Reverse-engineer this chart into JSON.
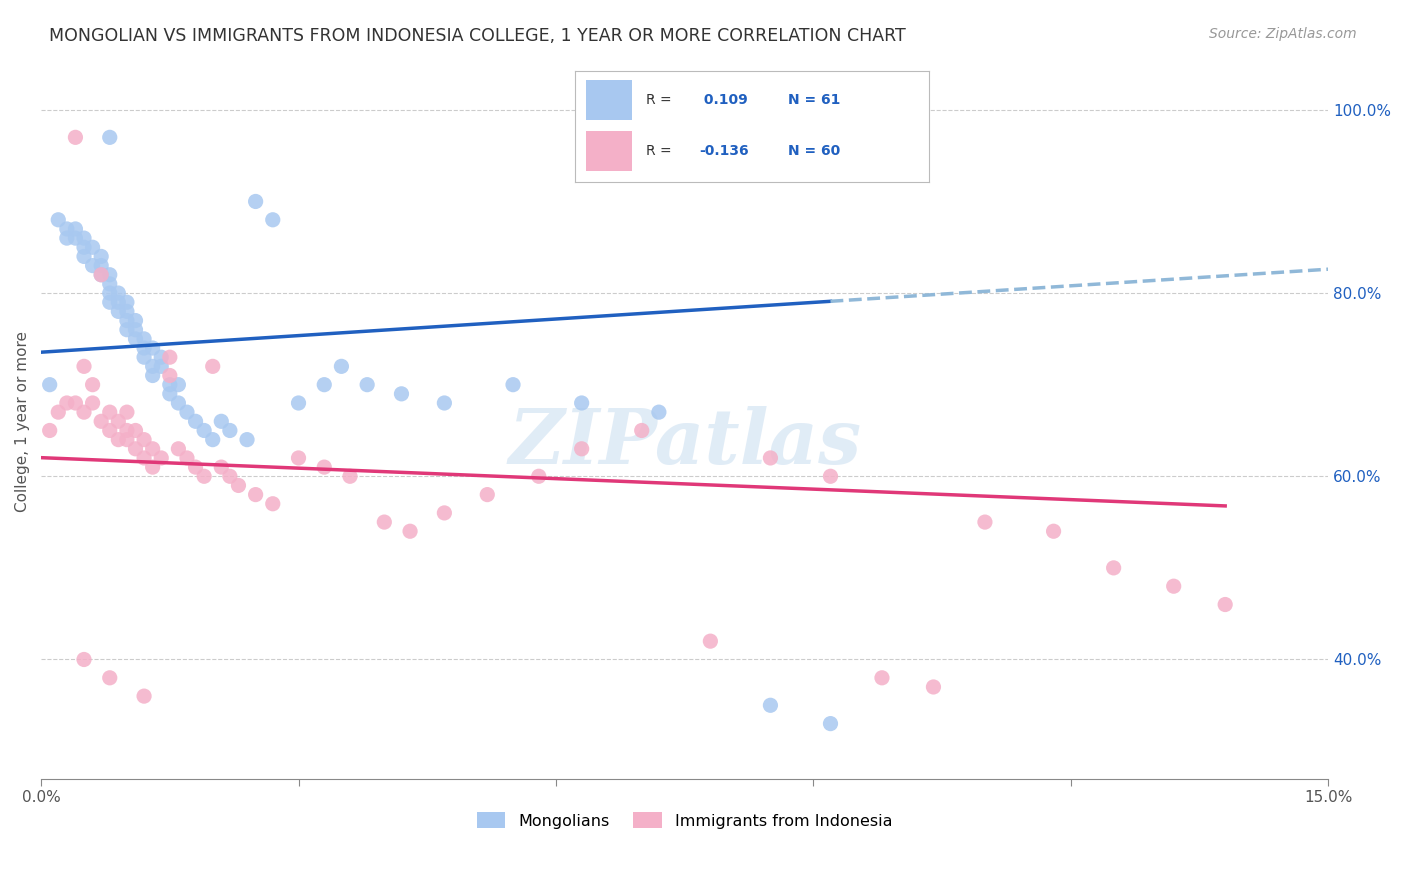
{
  "title": "MONGOLIAN VS IMMIGRANTS FROM INDONESIA COLLEGE, 1 YEAR OR MORE CORRELATION CHART",
  "source": "Source: ZipAtlas.com",
  "ylabel": "College, 1 year or more",
  "xlim": [
    0.0,
    0.15
  ],
  "ylim": [
    0.27,
    1.05
  ],
  "yticks_right": [
    1.0,
    0.8,
    0.6,
    0.4
  ],
  "yticklabels_right": [
    "100.0%",
    "80.0%",
    "60.0%",
    "40.0%"
  ],
  "mongolian_color": "#a8c8f0",
  "indonesia_color": "#f4b0c8",
  "mongolian_line_color": "#2060c0",
  "indonesia_line_color": "#e03878",
  "dashed_line_color": "#90b8d8",
  "R_mongolian": 0.109,
  "N_mongolian": 61,
  "R_indonesia": -0.136,
  "N_indonesia": 60,
  "watermark": "ZIPatlas",
  "mongolian_x": [
    0.001,
    0.002,
    0.003,
    0.003,
    0.004,
    0.004,
    0.005,
    0.005,
    0.005,
    0.006,
    0.006,
    0.007,
    0.007,
    0.007,
    0.008,
    0.008,
    0.008,
    0.008,
    0.009,
    0.009,
    0.009,
    0.01,
    0.01,
    0.01,
    0.01,
    0.011,
    0.011,
    0.011,
    0.012,
    0.012,
    0.012,
    0.013,
    0.013,
    0.013,
    0.014,
    0.014,
    0.015,
    0.015,
    0.016,
    0.016,
    0.017,
    0.018,
    0.019,
    0.02,
    0.021,
    0.022,
    0.024,
    0.025,
    0.027,
    0.03,
    0.033,
    0.035,
    0.038,
    0.042,
    0.047,
    0.055,
    0.063,
    0.072,
    0.085,
    0.092,
    0.008
  ],
  "mongolian_y": [
    0.7,
    0.88,
    0.87,
    0.86,
    0.86,
    0.87,
    0.85,
    0.86,
    0.84,
    0.83,
    0.85,
    0.82,
    0.84,
    0.83,
    0.82,
    0.8,
    0.79,
    0.81,
    0.78,
    0.8,
    0.79,
    0.77,
    0.78,
    0.76,
    0.79,
    0.75,
    0.77,
    0.76,
    0.75,
    0.74,
    0.73,
    0.74,
    0.72,
    0.71,
    0.73,
    0.72,
    0.7,
    0.69,
    0.68,
    0.7,
    0.67,
    0.66,
    0.65,
    0.64,
    0.66,
    0.65,
    0.64,
    0.9,
    0.88,
    0.68,
    0.7,
    0.72,
    0.7,
    0.69,
    0.68,
    0.7,
    0.68,
    0.67,
    0.35,
    0.33,
    0.97
  ],
  "indonesia_x": [
    0.001,
    0.002,
    0.003,
    0.004,
    0.004,
    0.005,
    0.005,
    0.006,
    0.006,
    0.007,
    0.007,
    0.008,
    0.008,
    0.009,
    0.009,
    0.01,
    0.01,
    0.01,
    0.011,
    0.011,
    0.012,
    0.012,
    0.013,
    0.013,
    0.014,
    0.015,
    0.015,
    0.016,
    0.017,
    0.018,
    0.019,
    0.02,
    0.021,
    0.022,
    0.023,
    0.025,
    0.027,
    0.03,
    0.033,
    0.036,
    0.04,
    0.043,
    0.047,
    0.052,
    0.058,
    0.063,
    0.07,
    0.078,
    0.085,
    0.092,
    0.098,
    0.104,
    0.11,
    0.118,
    0.125,
    0.132,
    0.138,
    0.005,
    0.008,
    0.012
  ],
  "indonesia_y": [
    0.65,
    0.67,
    0.68,
    0.97,
    0.68,
    0.72,
    0.67,
    0.7,
    0.68,
    0.82,
    0.66,
    0.65,
    0.67,
    0.66,
    0.64,
    0.65,
    0.67,
    0.64,
    0.65,
    0.63,
    0.64,
    0.62,
    0.63,
    0.61,
    0.62,
    0.73,
    0.71,
    0.63,
    0.62,
    0.61,
    0.6,
    0.72,
    0.61,
    0.6,
    0.59,
    0.58,
    0.57,
    0.62,
    0.61,
    0.6,
    0.55,
    0.54,
    0.56,
    0.58,
    0.6,
    0.63,
    0.65,
    0.42,
    0.62,
    0.6,
    0.38,
    0.37,
    0.55,
    0.54,
    0.5,
    0.48,
    0.46,
    0.4,
    0.38,
    0.36
  ]
}
